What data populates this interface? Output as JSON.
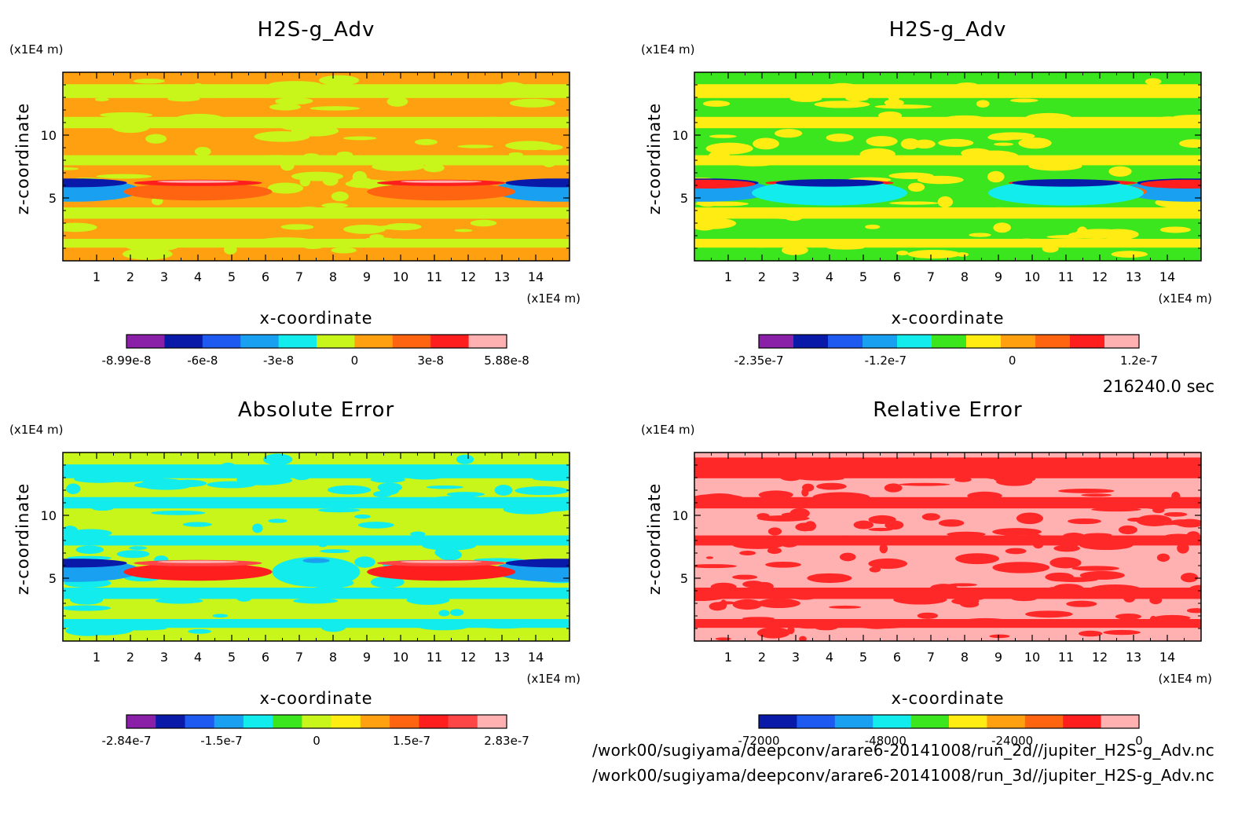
{
  "chart_data": [
    {
      "type": "heatmap",
      "title": "H2S-g_Adv",
      "xlabel": "x-coordinate",
      "ylabel": "z-coordinate",
      "x_unit": "(x1E4 m)",
      "y_unit": "(x1E4 m)",
      "xlim": [
        0,
        15
      ],
      "ylim": [
        0,
        15
      ],
      "x_ticks": [
        "1",
        "2",
        "3",
        "4",
        "5",
        "6",
        "7",
        "8",
        "9",
        "10",
        "11",
        "12",
        "13",
        "14"
      ],
      "y_ticks": [
        "5",
        "10"
      ],
      "colorbar_labels": [
        "-8.99e-8",
        "-6e-8",
        "-3e-8",
        "0",
        "3e-8",
        "5.88e-8"
      ],
      "colors": [
        "#8a1fa8",
        "#0a1aa8",
        "#1e5af0",
        "#1aa0f0",
        "#12ecec",
        "#c8f51a",
        "#ffa010",
        "#ff6410",
        "#ff1e1e",
        "#ffb0b0"
      ],
      "background": "#ffa010",
      "secondary": "#c8f51a"
    },
    {
      "type": "heatmap",
      "title": "H2S-g_Adv",
      "xlabel": "x-coordinate",
      "ylabel": "z-coordinate",
      "x_unit": "(x1E4 m)",
      "y_unit": "(x1E4 m)",
      "xlim": [
        0,
        15
      ],
      "ylim": [
        0,
        15
      ],
      "x_ticks": [
        "1",
        "2",
        "3",
        "4",
        "5",
        "6",
        "7",
        "8",
        "9",
        "10",
        "11",
        "12",
        "13",
        "14"
      ],
      "y_ticks": [
        "5",
        "10"
      ],
      "colorbar_labels": [
        "-2.35e-7",
        "-1.2e-7",
        "0",
        "1.2e-7"
      ],
      "colors": [
        "#8a1fa8",
        "#0a1aa8",
        "#1e5af0",
        "#1aa0f0",
        "#12ecec",
        "#3ce61e",
        "#ffec12",
        "#ffa010",
        "#ff6410",
        "#ff1e1e",
        "#ffb0b0"
      ],
      "background": "#3ce61e",
      "secondary": "#ffec12"
    },
    {
      "type": "heatmap",
      "title": "Absolute Error",
      "xlabel": "x-coordinate",
      "ylabel": "z-coordinate",
      "x_unit": "(x1E4 m)",
      "y_unit": "(x1E4 m)",
      "xlim": [
        0,
        15
      ],
      "ylim": [
        0,
        15
      ],
      "x_ticks": [
        "1",
        "2",
        "3",
        "4",
        "5",
        "6",
        "7",
        "8",
        "9",
        "10",
        "11",
        "12",
        "13",
        "14"
      ],
      "y_ticks": [
        "5",
        "10"
      ],
      "colorbar_labels": [
        "-2.84e-7",
        "-1.5e-7",
        "0",
        "1.5e-7",
        "2.83e-7"
      ],
      "colors": [
        "#8a1fa8",
        "#0a1aa8",
        "#1e5af0",
        "#1aa0f0",
        "#12ecec",
        "#3ce61e",
        "#c8f51a",
        "#ffec12",
        "#ffa010",
        "#ff6410",
        "#ff1e1e",
        "#ff4646",
        "#ffb0b0"
      ],
      "background": "#c8f51a",
      "secondary": "#12ecec"
    },
    {
      "type": "heatmap",
      "title": "Relative Error",
      "xlabel": "x-coordinate",
      "ylabel": "z-coordinate",
      "x_unit": "(x1E4 m)",
      "y_unit": "(x1E4 m)",
      "xlim": [
        0,
        15
      ],
      "ylim": [
        0,
        15
      ],
      "x_ticks": [
        "1",
        "2",
        "3",
        "4",
        "5",
        "6",
        "7",
        "8",
        "9",
        "10",
        "11",
        "12",
        "13",
        "14"
      ],
      "y_ticks": [
        "5",
        "10"
      ],
      "colorbar_labels": [
        "-72000",
        "-48000",
        "-24000",
        "0"
      ],
      "colors": [
        "#0a1aa8",
        "#1e5af0",
        "#1aa0f0",
        "#12ecec",
        "#3ce61e",
        "#ffec12",
        "#ffa010",
        "#ff6410",
        "#ff1e1e",
        "#ffb0b0"
      ],
      "background": "#ffb0b0",
      "secondary": "#ff2828"
    }
  ],
  "time_label": "216240.0 sec",
  "files": [
    "/work00/sugiyama/deepconv/arare6-20141008/run_2d//jupiter_H2S-g_Adv.nc",
    "/work00/sugiyama/deepconv/arare6-20141008/run_3d//jupiter_H2S-g_Adv.nc"
  ]
}
